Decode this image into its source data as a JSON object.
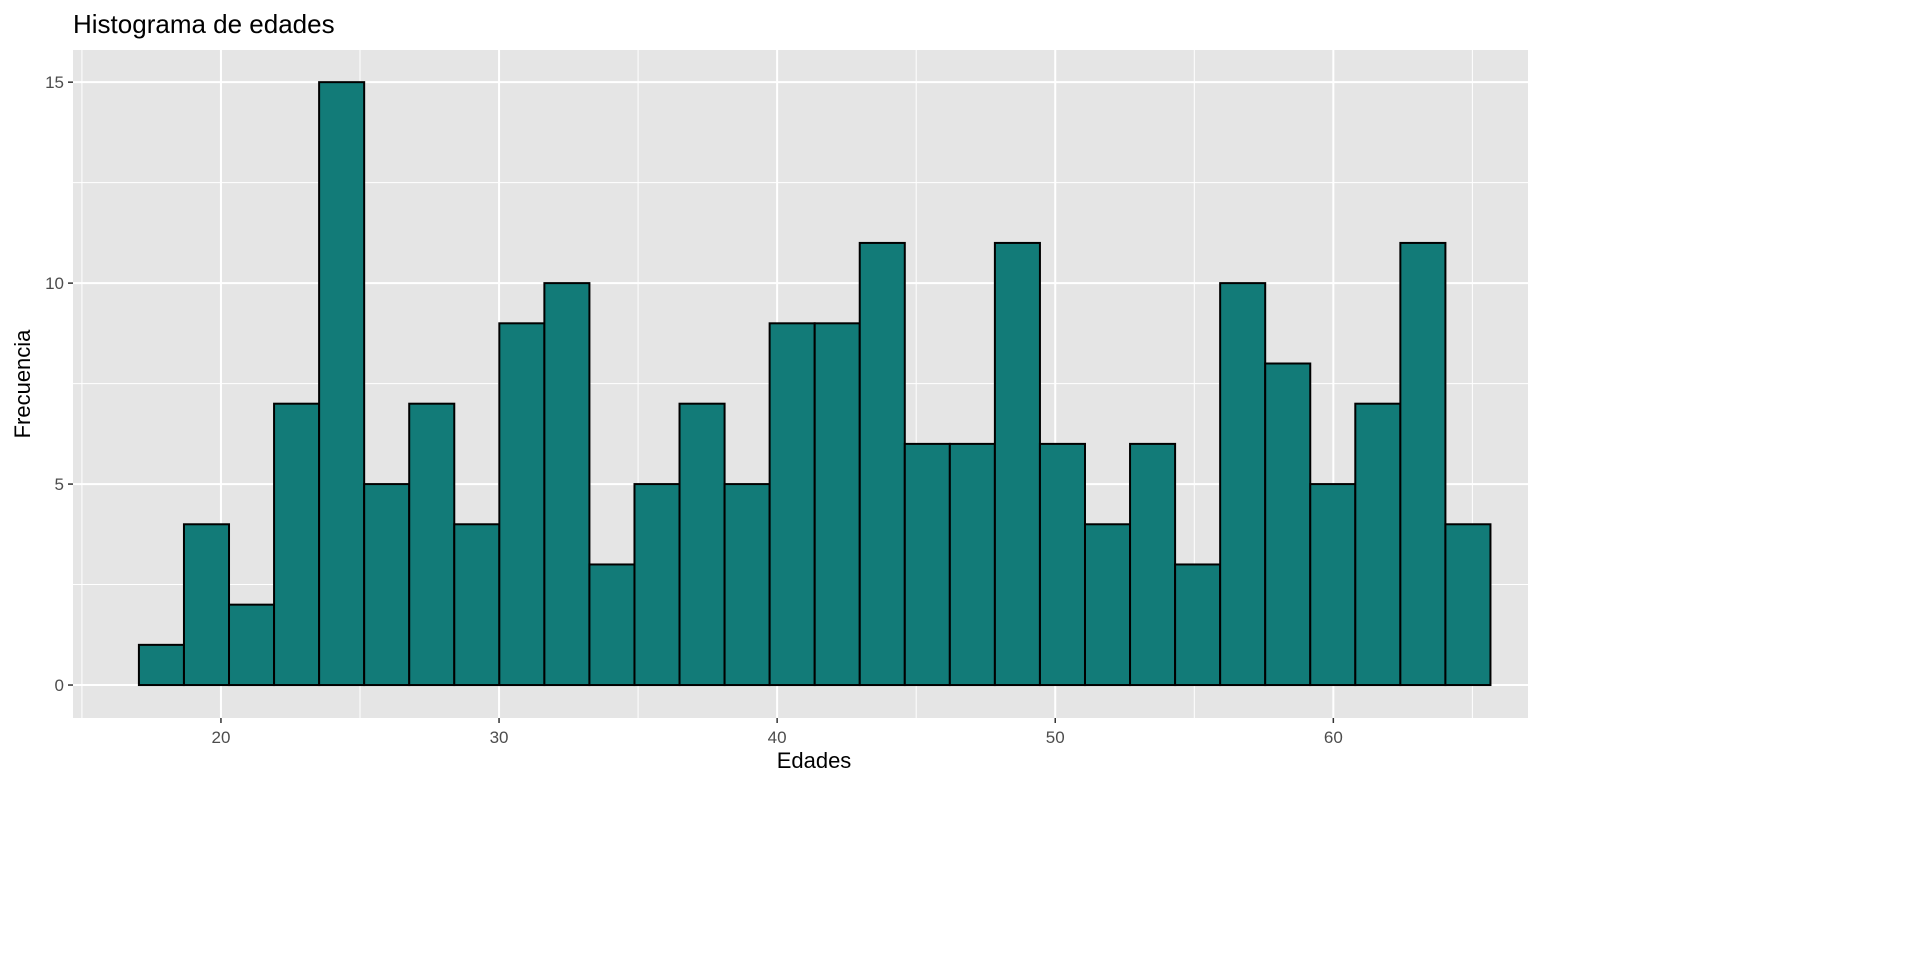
{
  "chart_data": {
    "type": "bar",
    "title": "Histograma de edades",
    "xlabel": "Edades",
    "ylabel": "Frecuencia",
    "bin_start": 17.05,
    "bin_width": 1.62,
    "values": [
      1,
      4,
      2,
      7,
      15,
      5,
      7,
      4,
      9,
      10,
      3,
      5,
      7,
      5,
      9,
      9,
      11,
      6,
      6,
      11,
      6,
      4,
      6,
      3,
      10,
      8,
      5,
      7,
      11,
      4
    ],
    "xlim": [
      14.68,
      67.0
    ],
    "ylim": [
      -0.82,
      15.8
    ],
    "x_ticks": [
      "20",
      "30",
      "40",
      "50",
      "60"
    ],
    "y_ticks": [
      "0",
      "5",
      "10",
      "15"
    ],
    "grid": true,
    "colors": {
      "bar_fill": "#127b78",
      "bar_stroke": "#000000",
      "panel": "#e5e5e5",
      "grid": "#ffffff"
    }
  }
}
